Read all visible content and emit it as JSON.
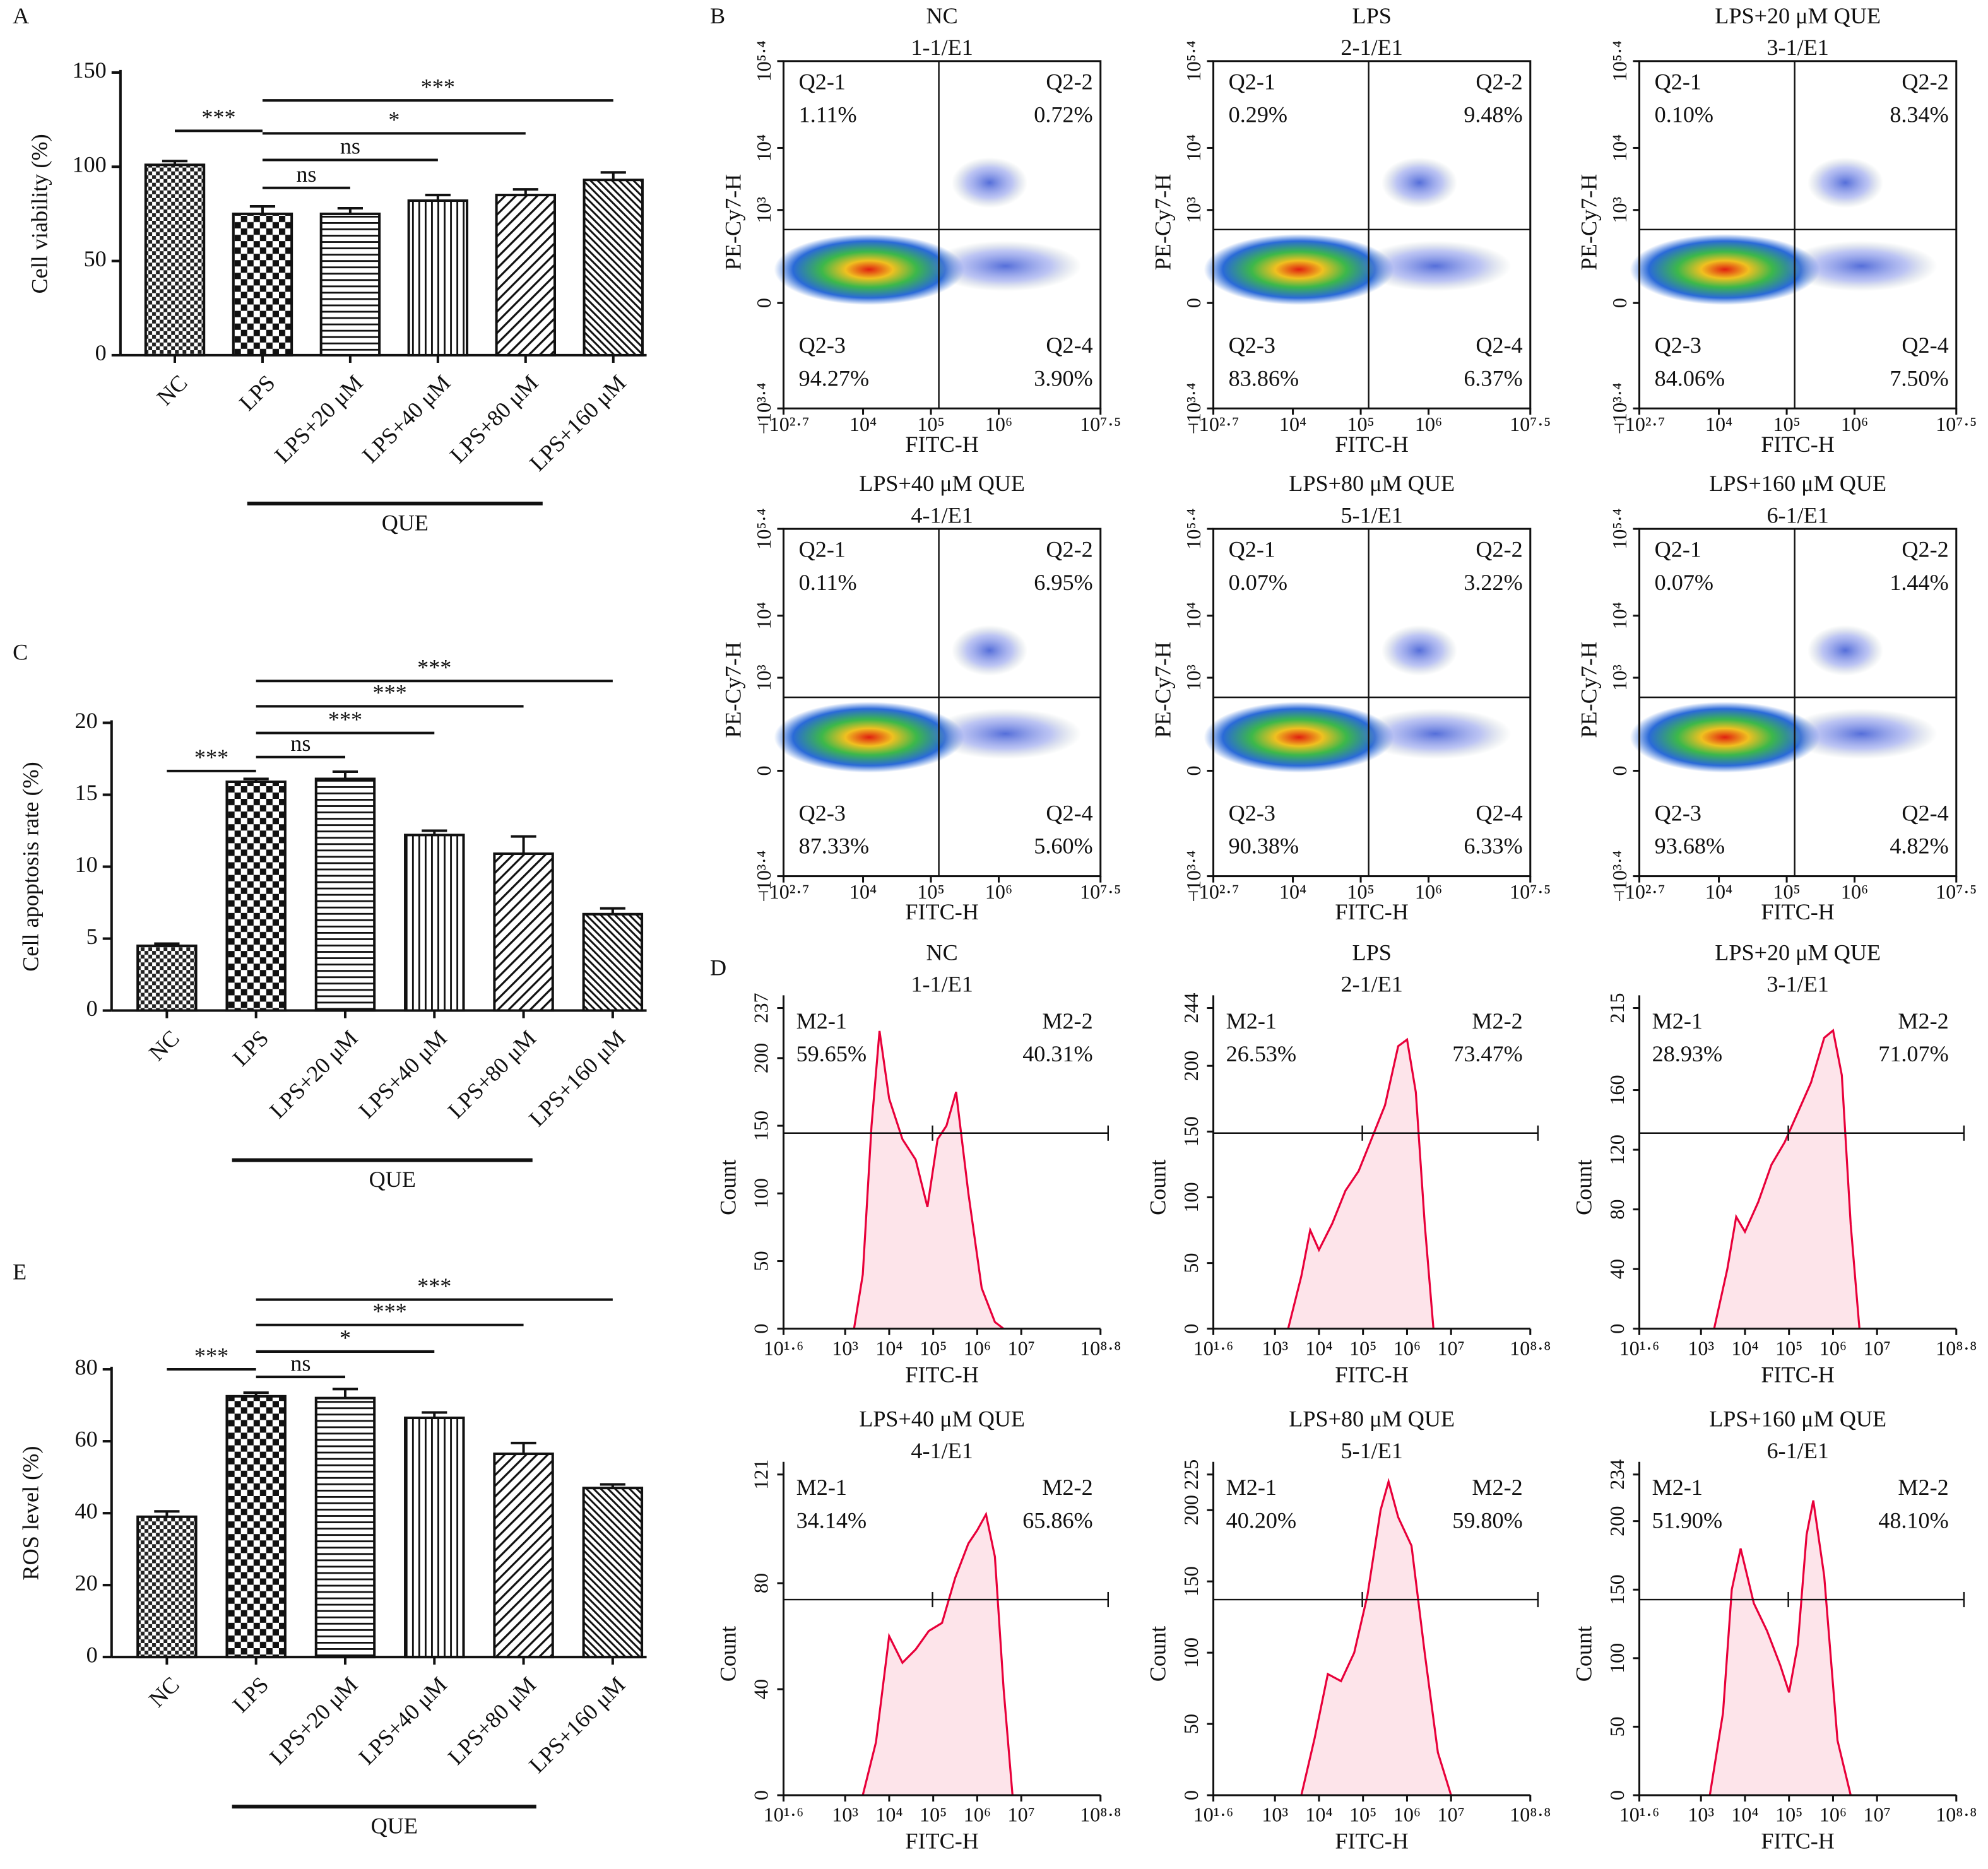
{
  "chart_data": [
    {
      "type": "bar",
      "panel": "A",
      "ylabel": "Cell viability (%)",
      "group_label": "QUE",
      "categories": [
        "NC",
        "LPS",
        "LPS+20 μM",
        "LPS+40 μM",
        "LPS+80 μM",
        "LPS+160 μM"
      ],
      "values": [
        101,
        75,
        75,
        82,
        85,
        93
      ],
      "errors": [
        2,
        4,
        3,
        3,
        3,
        4
      ],
      "ylim": [
        0,
        150
      ],
      "yticks": [
        0,
        50,
        100,
        150
      ],
      "annotations": [
        "***",
        "ns",
        "ns",
        "*",
        "***"
      ]
    },
    {
      "type": "bar",
      "panel": "C",
      "ylabel": "Cell apoptosis rate (%)",
      "group_label": "QUE",
      "categories": [
        "NC",
        "LPS",
        "LPS+20 μM",
        "LPS+40 μM",
        "LPS+80 μM",
        "LPS+160 μM"
      ],
      "values": [
        4.5,
        15.9,
        16.1,
        12.2,
        10.9,
        6.7
      ],
      "errors": [
        0.15,
        0.2,
        0.5,
        0.3,
        1.2,
        0.4
      ],
      "ylim": [
        0,
        20
      ],
      "yticks": [
        0,
        5,
        10,
        15,
        20
      ],
      "annotations": [
        "***",
        "ns",
        "***",
        "***",
        "***"
      ]
    },
    {
      "type": "bar",
      "panel": "E",
      "ylabel": "ROS level (%)",
      "group_label": "QUE",
      "categories": [
        "NC",
        "LPS",
        "LPS+20 μM",
        "LPS+40 μM",
        "LPS+80 μM",
        "LPS+160 μM"
      ],
      "values": [
        39,
        72.5,
        72,
        66.5,
        56.5,
        47
      ],
      "errors": [
        1.5,
        1,
        2.5,
        1.5,
        3,
        1
      ],
      "ylim": [
        0,
        80
      ],
      "yticks": [
        0,
        20,
        40,
        60,
        80
      ],
      "annotations": [
        "***",
        "ns",
        "*",
        "***",
        "***"
      ]
    },
    {
      "type": "quadrant",
      "panel": "B",
      "title": "NC",
      "subtitle": "1-1/E1",
      "xlabel": "FITC-H",
      "ylabel": "PE-Cy7-H",
      "quadrants": [
        "Q2-1",
        "Q2-2",
        "Q2-3",
        "Q2-4"
      ],
      "values": [
        1.11,
        0.72,
        94.27,
        3.9
      ],
      "value_labels": [
        "1.11%",
        "0.72%",
        "94.27%",
        "3.90%"
      ],
      "xlim": [
        -2.7,
        7.5
      ],
      "xticks": [
        {
          "value": -2.7,
          "label": "−10²·⁷"
        },
        {
          "value": 4,
          "label": "10⁴"
        },
        {
          "value": 5,
          "label": "10⁵"
        },
        {
          "value": 6,
          "label": "10⁶"
        },
        {
          "value": 7.5,
          "label": "10⁷·⁵"
        }
      ],
      "ylim": [
        -3.4,
        5.4
      ],
      "yticks": [
        {
          "value": -3.4,
          "label": "−10³·⁴"
        },
        0,
        {
          "value": 3,
          "label": "10³"
        },
        {
          "value": 4,
          "label": "10⁴"
        },
        {
          "value": 5.4,
          "label": "10⁵·⁴"
        }
      ]
    },
    {
      "type": "quadrant",
      "title": "LPS",
      "subtitle": "2-1/E1",
      "xlabel": "FITC-H",
      "ylabel": "PE-Cy7-H",
      "quadrants": [
        "Q2-1",
        "Q2-2",
        "Q2-3",
        "Q2-4"
      ],
      "values": [
        0.29,
        9.48,
        83.86,
        6.37
      ],
      "value_labels": [
        "0.29%",
        "9.48%",
        "83.86%",
        "6.37%"
      ],
      "xlim": [
        -2.7,
        7.5
      ],
      "xticks": [
        {
          "value": -2.7,
          "label": "−10²·⁷"
        },
        {
          "value": 4,
          "label": "10⁴"
        },
        {
          "value": 5,
          "label": "10⁵"
        },
        {
          "value": 6,
          "label": "10⁶"
        },
        {
          "value": 7.5,
          "label": "10⁷·⁵"
        }
      ],
      "ylim": [
        -3.4,
        5.4
      ],
      "yticks": [
        {
          "value": -3.4,
          "label": "−10³·⁴"
        },
        0,
        {
          "value": 3,
          "label": "10³"
        },
        {
          "value": 4,
          "label": "10⁴"
        },
        {
          "value": 5.4,
          "label": "10⁵·⁴"
        }
      ]
    },
    {
      "type": "quadrant",
      "title": "LPS+20 μM QUE",
      "subtitle": "3-1/E1",
      "xlabel": "FITC-H",
      "ylabel": "PE-Cy7-H",
      "quadrants": [
        "Q2-1",
        "Q2-2",
        "Q2-3",
        "Q2-4"
      ],
      "values": [
        0.1,
        8.34,
        84.06,
        7.5
      ],
      "value_labels": [
        "0.10%",
        "8.34%",
        "84.06%",
        "7.50%"
      ],
      "xlim": [
        -2.7,
        7.5
      ],
      "xticks": [
        {
          "value": -2.7,
          "label": "−10²·⁷"
        },
        {
          "value": 4,
          "label": "10⁴"
        },
        {
          "value": 5,
          "label": "10⁵"
        },
        {
          "value": 6,
          "label": "10⁶"
        },
        {
          "value": 7.5,
          "label": "10⁷·⁵"
        }
      ],
      "ylim": [
        -3.4,
        5.4
      ],
      "yticks": [
        {
          "value": -3.4,
          "label": "−10³·⁴"
        },
        0,
        {
          "value": 3,
          "label": "10³"
        },
        {
          "value": 4,
          "label": "10⁴"
        },
        {
          "value": 5.4,
          "label": "10⁵·⁴"
        }
      ]
    },
    {
      "type": "quadrant",
      "title": "LPS+40 μM QUE",
      "subtitle": "4-1/E1",
      "xlabel": "FITC-H",
      "ylabel": "PE-Cy7-H",
      "quadrants": [
        "Q2-1",
        "Q2-2",
        "Q2-3",
        "Q2-4"
      ],
      "values": [
        0.11,
        6.95,
        87.33,
        5.6
      ],
      "value_labels": [
        "0.11%",
        "6.95%",
        "87.33%",
        "5.60%"
      ],
      "xlim": [
        -2.7,
        7.5
      ],
      "xticks": [
        {
          "value": -2.7,
          "label": "−10²·⁷"
        },
        {
          "value": 4,
          "label": "10⁴"
        },
        {
          "value": 5,
          "label": "10⁵"
        },
        {
          "value": 6,
          "label": "10⁶"
        },
        {
          "value": 7.5,
          "label": "10⁷·⁵"
        }
      ],
      "ylim": [
        -3.4,
        5.4
      ],
      "yticks": [
        {
          "value": -3.4,
          "label": "−10³·⁴"
        },
        0,
        {
          "value": 3,
          "label": "10³"
        },
        {
          "value": 4,
          "label": "10⁴"
        },
        {
          "value": 5.4,
          "label": "10⁵·⁴"
        }
      ]
    },
    {
      "type": "quadrant",
      "title": "LPS+80 μM QUE",
      "subtitle": "5-1/E1",
      "xlabel": "FITC-H",
      "ylabel": "PE-Cy7-H",
      "quadrants": [
        "Q2-1",
        "Q2-2",
        "Q2-3",
        "Q2-4"
      ],
      "values": [
        0.07,
        3.22,
        90.38,
        6.33
      ],
      "value_labels": [
        "0.07%",
        "3.22%",
        "90.38%",
        "6.33%"
      ],
      "xlim": [
        -2.7,
        7.5
      ],
      "xticks": [
        {
          "value": -2.7,
          "label": "−10²·⁷"
        },
        {
          "value": 4,
          "label": "10⁴"
        },
        {
          "value": 5,
          "label": "10⁵"
        },
        {
          "value": 6,
          "label": "10⁶"
        },
        {
          "value": 7.5,
          "label": "10⁷·⁵"
        }
      ],
      "ylim": [
        -3.4,
        5.4
      ],
      "yticks": [
        {
          "value": -3.4,
          "label": "−10³·⁴"
        },
        0,
        {
          "value": 3,
          "label": "10³"
        },
        {
          "value": 4,
          "label": "10⁴"
        },
        {
          "value": 5.4,
          "label": "10⁵·⁴"
        }
      ]
    },
    {
      "type": "quadrant",
      "title": "LPS+160 μM QUE",
      "subtitle": "6-1/E1",
      "xlabel": "FITC-H",
      "ylabel": "PE-Cy7-H",
      "quadrants": [
        "Q2-1",
        "Q2-2",
        "Q2-3",
        "Q2-4"
      ],
      "values": [
        0.07,
        1.44,
        93.68,
        4.82
      ],
      "value_labels": [
        "0.07%",
        "1.44%",
        "93.68%",
        "4.82%"
      ],
      "xlim": [
        -2.7,
        7.5
      ],
      "xticks": [
        {
          "value": -2.7,
          "label": "−10²·⁷"
        },
        {
          "value": 4,
          "label": "10⁴"
        },
        {
          "value": 5,
          "label": "10⁵"
        },
        {
          "value": 6,
          "label": "10⁶"
        },
        {
          "value": 7.5,
          "label": "10⁷·⁵"
        }
      ],
      "ylim": [
        -3.4,
        5.4
      ],
      "yticks": [
        {
          "value": -3.4,
          "label": "−10³·⁴"
        },
        0,
        {
          "value": 3,
          "label": "10³"
        },
        {
          "value": 4,
          "label": "10⁴"
        },
        {
          "value": 5.4,
          "label": "10⁵·⁴"
        }
      ]
    },
    {
      "type": "line",
      "panel": "D",
      "title": "NC",
      "subtitle": "1-1/E1",
      "xlabel": "FITC-H",
      "ylabel": "Count",
      "gates": [
        "M2-1",
        "M2-2"
      ],
      "gate_values": [
        59.65,
        40.31
      ],
      "gate_labels": [
        "59.65%",
        "40.31%"
      ],
      "color": "#e8003a",
      "x": [
        3.2,
        3.4,
        3.6,
        3.78,
        4.0,
        4.3,
        4.6,
        4.87,
        5.1,
        5.3,
        5.52,
        5.8,
        6.1,
        6.4,
        6.6
      ],
      "values": [
        0,
        40,
        150,
        220,
        170,
        140,
        125,
        90,
        140,
        150,
        175,
        100,
        30,
        5,
        0
      ],
      "xlim": [
        1.6,
        8.8
      ],
      "xticks": [
        {
          "value": 1.6,
          "label": "10¹·⁶"
        },
        {
          "value": 3,
          "label": "10³"
        },
        {
          "value": 4,
          "label": "10⁴"
        },
        {
          "value": 5,
          "label": "10⁵"
        },
        {
          "value": 6,
          "label": "10⁶"
        },
        {
          "value": 7,
          "label": "10⁷"
        },
        {
          "value": 8.8,
          "label": "10⁸·⁸"
        }
      ],
      "ylim": [
        0,
        237
      ],
      "yticks": [
        0,
        50,
        100,
        150,
        200,
        237
      ]
    },
    {
      "type": "line",
      "title": "LPS",
      "subtitle": "2-1/E1",
      "xlabel": "FITC-H",
      "ylabel": "Count",
      "gates": [
        "M2-1",
        "M2-2"
      ],
      "gate_values": [
        26.53,
        73.47
      ],
      "gate_labels": [
        "26.53%",
        "73.47%"
      ],
      "color": "#e8003a",
      "x": [
        3.3,
        3.6,
        3.8,
        4.0,
        4.3,
        4.6,
        4.9,
        5.2,
        5.5,
        5.8,
        6.0,
        6.2,
        6.4,
        6.6
      ],
      "values": [
        0,
        40,
        75,
        60,
        80,
        105,
        120,
        145,
        170,
        215,
        220,
        180,
        80,
        0
      ],
      "xlim": [
        1.6,
        8.8
      ],
      "xticks": [
        {
          "value": 1.6,
          "label": "10¹·⁶"
        },
        {
          "value": 3,
          "label": "10³"
        },
        {
          "value": 4,
          "label": "10⁴"
        },
        {
          "value": 5,
          "label": "10⁵"
        },
        {
          "value": 6,
          "label": "10⁶"
        },
        {
          "value": 7,
          "label": "10⁷"
        },
        {
          "value": 8.8,
          "label": "10⁸·⁸"
        }
      ],
      "ylim": [
        0,
        244
      ],
      "yticks": [
        0,
        50,
        100,
        150,
        200,
        244
      ]
    },
    {
      "type": "line",
      "title": "LPS+20 μM QUE",
      "subtitle": "3-1/E1",
      "xlabel": "FITC-H",
      "ylabel": "Count",
      "gates": [
        "M2-1",
        "M2-2"
      ],
      "gate_values": [
        28.93,
        71.07
      ],
      "gate_labels": [
        "28.93%",
        "71.07%"
      ],
      "color": "#e8003a",
      "x": [
        3.3,
        3.6,
        3.8,
        4.0,
        4.3,
        4.6,
        4.9,
        5.2,
        5.5,
        5.8,
        6.0,
        6.2,
        6.4,
        6.6
      ],
      "values": [
        0,
        40,
        75,
        65,
        85,
        110,
        125,
        145,
        165,
        195,
        200,
        170,
        70,
        0
      ],
      "xlim": [
        1.6,
        8.8
      ],
      "xticks": [
        {
          "value": 1.6,
          "label": "10¹·⁶"
        },
        {
          "value": 3,
          "label": "10³"
        },
        {
          "value": 4,
          "label": "10⁴"
        },
        {
          "value": 5,
          "label": "10⁵"
        },
        {
          "value": 6,
          "label": "10⁶"
        },
        {
          "value": 7,
          "label": "10⁷"
        },
        {
          "value": 8.8,
          "label": "10⁸·⁸"
        }
      ],
      "ylim": [
        0,
        215
      ],
      "yticks": [
        0,
        40,
        80,
        120,
        160,
        215
      ]
    },
    {
      "type": "line",
      "title": "LPS+40 μM QUE",
      "subtitle": "4-1/E1",
      "xlabel": "FITC-H",
      "ylabel": "Count",
      "gates": [
        "M2-1",
        "M2-2"
      ],
      "gate_values": [
        34.14,
        65.86
      ],
      "gate_labels": [
        "34.14%",
        "65.86%"
      ],
      "color": "#e8003a",
      "x": [
        3.4,
        3.7,
        4.0,
        4.3,
        4.6,
        4.9,
        5.2,
        5.5,
        5.8,
        6.0,
        6.2,
        6.4,
        6.6,
        6.8
      ],
      "values": [
        0,
        20,
        60,
        50,
        55,
        62,
        65,
        82,
        95,
        100,
        106,
        90,
        40,
        0
      ],
      "xlim": [
        1.6,
        8.8
      ],
      "xticks": [
        {
          "value": 1.6,
          "label": "10¹·⁶"
        },
        {
          "value": 3,
          "label": "10³"
        },
        {
          "value": 4,
          "label": "10⁴"
        },
        {
          "value": 5,
          "label": "10⁵"
        },
        {
          "value": 6,
          "label": "10⁶"
        },
        {
          "value": 7,
          "label": "10⁷"
        },
        {
          "value": 8.8,
          "label": "10⁸·⁸"
        }
      ],
      "ylim": [
        0,
        121
      ],
      "yticks": [
        0,
        40,
        80,
        121
      ]
    },
    {
      "type": "line",
      "title": "LPS+80 μM QUE",
      "subtitle": "5-1/E1",
      "xlabel": "FITC-H",
      "ylabel": "Count",
      "gates": [
        "M2-1",
        "M2-2"
      ],
      "gate_values": [
        40.2,
        59.8
      ],
      "gate_labels": [
        "40.20%",
        "59.80%"
      ],
      "color": "#e8003a",
      "x": [
        3.6,
        3.9,
        4.2,
        4.5,
        4.8,
        5.1,
        5.4,
        5.58,
        5.8,
        6.1,
        6.4,
        6.7,
        7.0
      ],
      "values": [
        0,
        40,
        85,
        80,
        100,
        140,
        200,
        220,
        195,
        175,
        100,
        30,
        0
      ],
      "xlim": [
        1.6,
        8.8
      ],
      "xticks": [
        {
          "value": 1.6,
          "label": "10¹·⁶"
        },
        {
          "value": 3,
          "label": "10³"
        },
        {
          "value": 4,
          "label": "10⁴"
        },
        {
          "value": 5,
          "label": "10⁵"
        },
        {
          "value": 6,
          "label": "10⁶"
        },
        {
          "value": 7,
          "label": "10⁷"
        },
        {
          "value": 8.8,
          "label": "10⁸·⁸"
        }
      ],
      "ylim": [
        0,
        225
      ],
      "yticks": [
        0,
        50,
        100,
        150,
        200,
        225
      ]
    },
    {
      "type": "line",
      "title": "LPS+160 μM QUE",
      "subtitle": "6-1/E1",
      "xlabel": "FITC-H",
      "ylabel": "Count",
      "gates": [
        "M2-1",
        "M2-2"
      ],
      "gate_values": [
        51.9,
        48.1
      ],
      "gate_labels": [
        "51.90%",
        "48.10%"
      ],
      "color": "#e8003a",
      "x": [
        3.2,
        3.5,
        3.7,
        3.9,
        4.2,
        4.5,
        4.8,
        5.0,
        5.2,
        5.4,
        5.55,
        5.8,
        6.1,
        6.4
      ],
      "values": [
        0,
        60,
        150,
        180,
        140,
        120,
        95,
        75,
        110,
        190,
        215,
        160,
        40,
        0
      ],
      "xlim": [
        1.6,
        8.8
      ],
      "xticks": [
        {
          "value": 1.6,
          "label": "10¹·⁶"
        },
        {
          "value": 3,
          "label": "10³"
        },
        {
          "value": 4,
          "label": "10⁴"
        },
        {
          "value": 5,
          "label": "10⁵"
        },
        {
          "value": 6,
          "label": "10⁶"
        },
        {
          "value": 7,
          "label": "10⁷"
        },
        {
          "value": 8.8,
          "label": "10⁸·⁸"
        }
      ],
      "ylim": [
        0,
        234
      ],
      "yticks": [
        0,
        50,
        100,
        150,
        200,
        234
      ]
    }
  ]
}
